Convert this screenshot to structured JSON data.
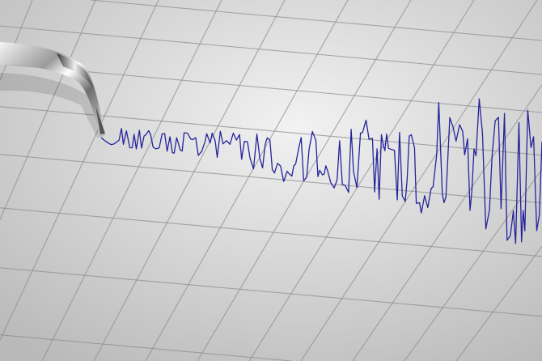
{
  "scene": {
    "subject": "seismograph",
    "colors": {
      "paper_light": "#f2f2f2",
      "paper_dark": "#b9b9b9",
      "grid_line": "#8e8e8e",
      "trace": "#24239b",
      "needle_metal": "#c9c9c9"
    }
  }
}
